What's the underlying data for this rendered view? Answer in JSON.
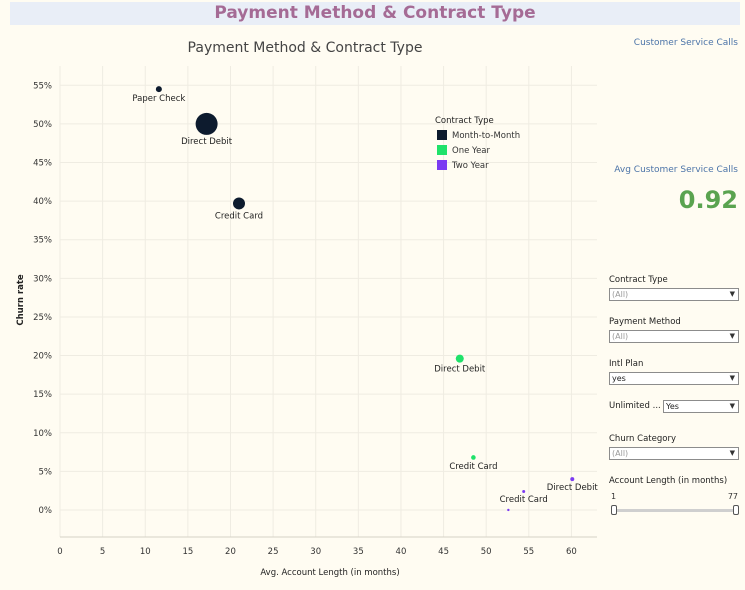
{
  "dashboard": {
    "title": "Payment Method & Contract Type"
  },
  "chart_data": {
    "type": "scatter",
    "title": "Payment Method & Contract Type",
    "xlabel": "Avg. Account Length (in months)",
    "ylabel": "Churn rate",
    "xlim": [
      0,
      63
    ],
    "ylim": [
      -3.5,
      57.5
    ],
    "x_ticks": [
      0,
      5,
      10,
      15,
      20,
      25,
      30,
      35,
      40,
      45,
      50,
      55,
      60
    ],
    "y_ticks": [
      0,
      5,
      10,
      15,
      20,
      25,
      30,
      35,
      40,
      45,
      50,
      55
    ],
    "y_tick_suffix": "%",
    "grid": true,
    "legend": {
      "title": "Contract Type",
      "placement": "top-right",
      "items": [
        {
          "name": "Month-to-Month",
          "color": "#0d1b2e"
        },
        {
          "name": "One Year",
          "color": "#1fe26a"
        },
        {
          "name": "Two Year",
          "color": "#7b3bf2"
        }
      ]
    },
    "series": [
      {
        "name": "Month-to-Month",
        "color": "#0d1b2e",
        "points": [
          {
            "x": 11.6,
            "y": 54.5,
            "size": 3,
            "label": "Paper Check"
          },
          {
            "x": 17.2,
            "y": 50.0,
            "size": 11,
            "label": "Direct Debit"
          },
          {
            "x": 21.0,
            "y": 39.7,
            "size": 6,
            "label": "Credit Card"
          }
        ]
      },
      {
        "name": "One Year",
        "color": "#1fe26a",
        "points": [
          {
            "x": 46.9,
            "y": 19.6,
            "size": 4,
            "label": "Direct Debit"
          },
          {
            "x": 48.5,
            "y": 6.8,
            "size": 2.3,
            "label": "Credit Card"
          }
        ]
      },
      {
        "name": "Two Year",
        "color": "#7b3bf2",
        "points": [
          {
            "x": 60.1,
            "y": 4.0,
            "size": 2,
            "label": "Direct Debit"
          },
          {
            "x": 54.4,
            "y": 2.4,
            "size": 1.5,
            "label": "Credit Card"
          },
          {
            "x": 52.6,
            "y": 0.0,
            "size": 1.2,
            "label": ""
          }
        ]
      }
    ]
  },
  "side": {
    "csc_title": "Customer Service Calls",
    "kpi_title": "Avg Customer Service Calls",
    "kpi_value": "0.92"
  },
  "filters": {
    "contract_type": {
      "label": "Contract Type",
      "value": "(All)"
    },
    "payment_method": {
      "label": "Payment Method",
      "value": "(All)"
    },
    "intl_plan": {
      "label": "Intl Plan",
      "value": "yes"
    },
    "unlimited": {
      "label": "Unlimited ...",
      "value": "Yes"
    },
    "churn_category": {
      "label": "Churn Category",
      "value": "(All)"
    },
    "account_length": {
      "label": "Account Length (in months)",
      "min": "1",
      "max": "77"
    }
  }
}
